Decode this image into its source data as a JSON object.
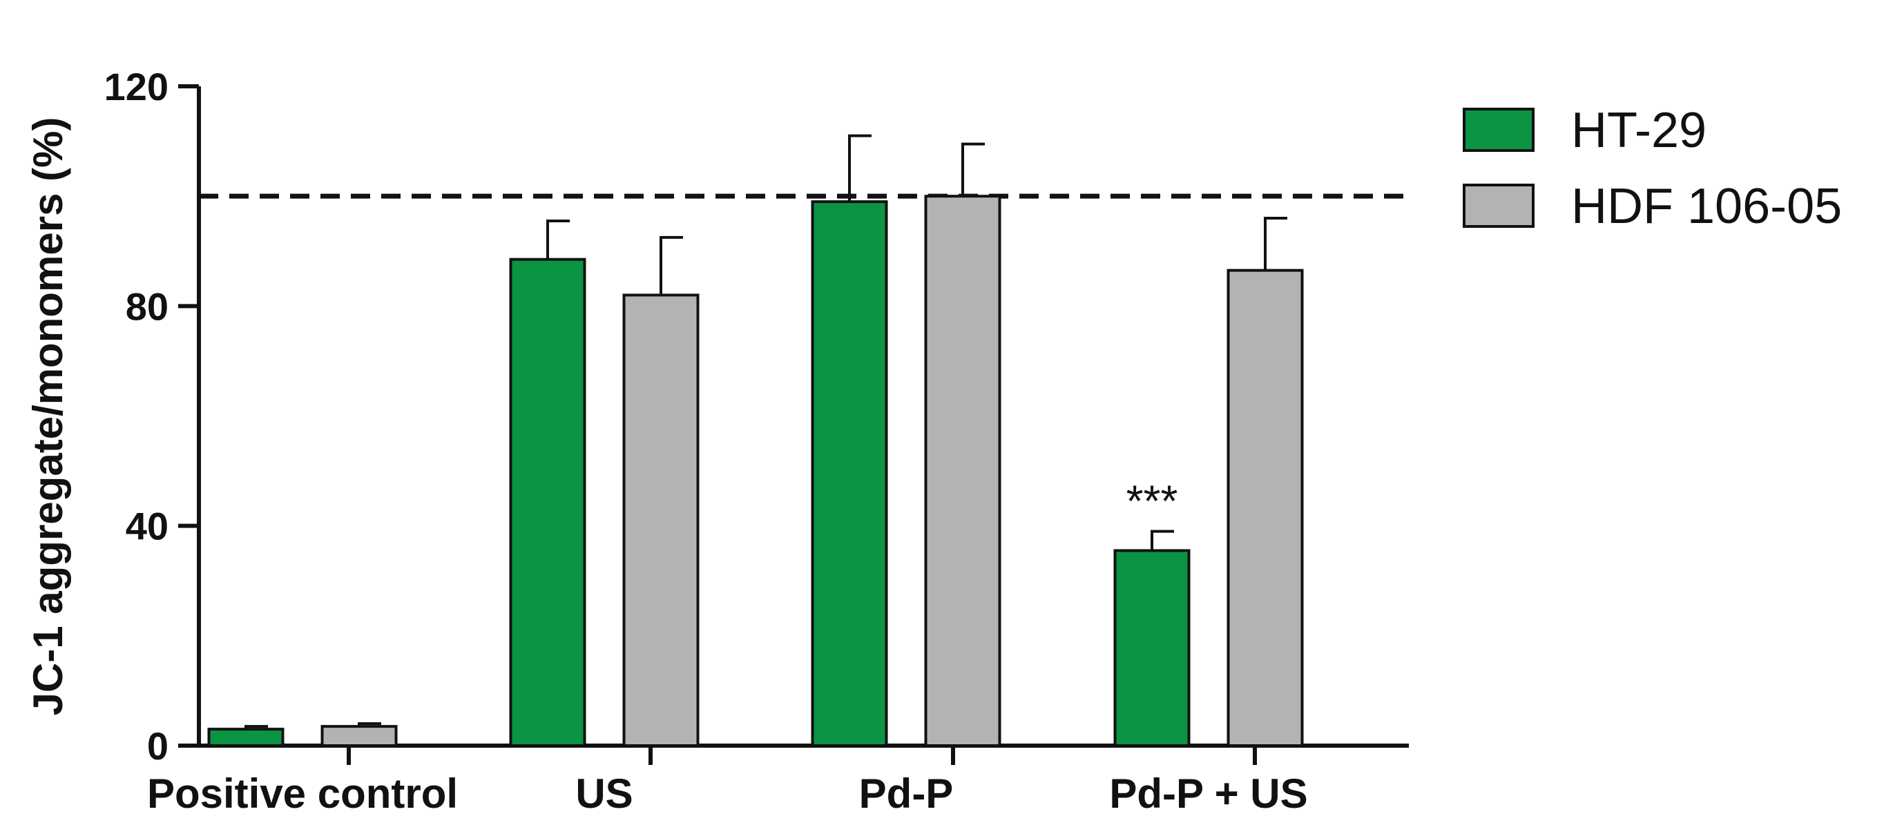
{
  "chart_data": {
    "type": "bar",
    "categories": [
      "Positive control",
      "US",
      "Pd-P",
      "Pd-P + US"
    ],
    "series": [
      {
        "name": "HT-29",
        "values": [
          3,
          88.5,
          99,
          35.5
        ],
        "errors": [
          0.5,
          7,
          12,
          3.5
        ],
        "color": "#0a9444"
      },
      {
        "name": "HDF 106-05",
        "values": [
          3.5,
          82,
          100,
          86.5
        ],
        "errors": [
          0.5,
          10.5,
          9.5,
          9.5
        ],
        "color": "#b3b3b3"
      }
    ],
    "ylabel": "JC-1 aggregate/monomers (%)",
    "ylim": [
      0,
      120
    ],
    "yticks": [
      0,
      40,
      80,
      120
    ],
    "reference_line": {
      "y": 100,
      "style": "dashed"
    },
    "annotations": [
      {
        "category": "Pd-P + US",
        "series": "HT-29",
        "text": "***"
      }
    ],
    "legend_position": "top-right",
    "grid": false
  }
}
